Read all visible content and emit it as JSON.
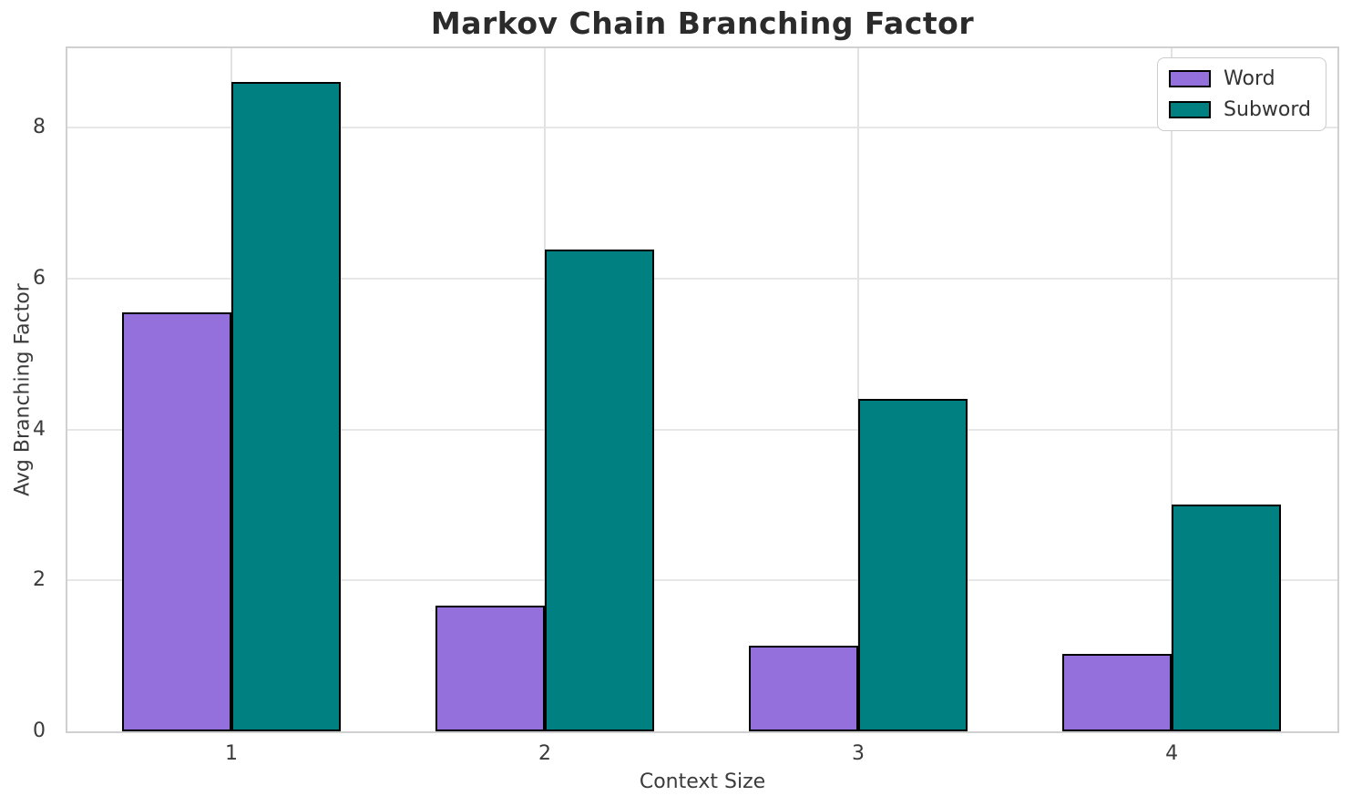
{
  "chart_data": {
    "type": "bar",
    "title": "Markov Chain Branching Factor",
    "xlabel": "Context Size",
    "ylabel": "Avg Branching Factor",
    "categories": [
      "1",
      "2",
      "3",
      "4"
    ],
    "series": [
      {
        "name": "Word",
        "color": "#9370DB",
        "values": [
          5.55,
          1.67,
          1.13,
          1.03
        ]
      },
      {
        "name": "Subword",
        "color": "#008080",
        "values": [
          8.6,
          6.38,
          4.41,
          3.01
        ]
      }
    ],
    "ylim": [
      0,
      9.05
    ],
    "yticks": [
      0,
      2,
      4,
      6,
      8
    ],
    "grid": true,
    "legend_position": "upper right",
    "bar_edge_color": "#000000",
    "grid_color": "#e7e7e7",
    "spine_color": "#d0d0d0",
    "title_color": "#2b2b2b",
    "tick_color": "#3b3b3b"
  }
}
